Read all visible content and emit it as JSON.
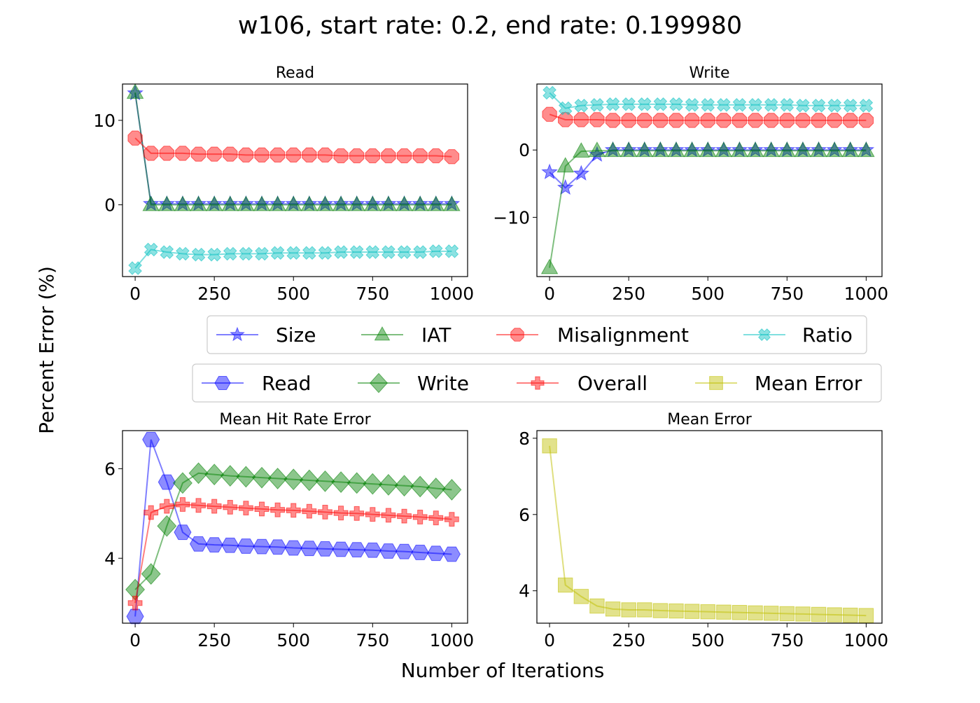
{
  "figure": {
    "title": "w106, start rate: 0.2, end rate: 0.199980",
    "xlabel": "Number of Iterations",
    "ylabel": "Percent Error (%)"
  },
  "legends": [
    {
      "entries": [
        "Size",
        "IAT",
        "Misalignment",
        "Ratio"
      ]
    },
    {
      "entries": [
        "Read",
        "Write",
        "Overall",
        "Mean Error"
      ]
    }
  ],
  "styles": {
    "Size": {
      "color": "#0000ff",
      "marker": "star"
    },
    "IAT": {
      "color": "#008000",
      "marker": "triangle"
    },
    "Misalignment": {
      "color": "#ff0000",
      "marker": "octagon"
    },
    "Ratio": {
      "color": "#00bfbf",
      "marker": "x"
    },
    "Read": {
      "color": "#0000ff",
      "marker": "hexagon"
    },
    "Write": {
      "color": "#008000",
      "marker": "diamond"
    },
    "Overall": {
      "color": "#ff0000",
      "marker": "plus"
    },
    "Mean Error": {
      "color": "#bfbf00",
      "marker": "square"
    }
  },
  "chart_data": [
    {
      "type": "line",
      "title": "Read",
      "x": [
        0,
        50,
        100,
        150,
        200,
        250,
        300,
        350,
        400,
        450,
        500,
        550,
        600,
        650,
        700,
        750,
        800,
        850,
        900,
        950,
        1000
      ],
      "xlim": [
        -40,
        1050
      ],
      "ylim": [
        -8.5,
        14.3
      ],
      "xticks": [
        0,
        250,
        500,
        750,
        1000
      ],
      "yticks": [
        0,
        10
      ],
      "series": [
        {
          "name": "Size",
          "values": [
            13.2,
            0.1,
            0.1,
            0.1,
            0.1,
            0.1,
            0.1,
            0.1,
            0.1,
            0.1,
            0.1,
            0.1,
            0.1,
            0.1,
            0.1,
            0.1,
            0.1,
            0.1,
            0.1,
            0.1,
            0.1
          ]
        },
        {
          "name": "IAT",
          "values": [
            13.3,
            0.0,
            0.0,
            0.0,
            0.0,
            0.0,
            0.0,
            0.0,
            0.0,
            0.0,
            0.0,
            0.0,
            0.0,
            0.0,
            0.0,
            0.0,
            0.0,
            0.0,
            0.0,
            0.0,
            0.0
          ]
        },
        {
          "name": "Misalignment",
          "values": [
            7.9,
            6.1,
            6.1,
            6.1,
            6.0,
            6.0,
            6.0,
            5.9,
            5.9,
            5.9,
            5.9,
            5.9,
            5.9,
            5.8,
            5.8,
            5.8,
            5.8,
            5.8,
            5.8,
            5.8,
            5.7
          ]
        },
        {
          "name": "Ratio",
          "values": [
            -7.5,
            -5.3,
            -5.6,
            -5.8,
            -5.9,
            -5.9,
            -5.8,
            -5.8,
            -5.8,
            -5.7,
            -5.7,
            -5.7,
            -5.7,
            -5.6,
            -5.6,
            -5.6,
            -5.6,
            -5.6,
            -5.6,
            -5.5,
            -5.5
          ]
        }
      ]
    },
    {
      "type": "line",
      "title": "Write",
      "x": [
        0,
        50,
        100,
        150,
        200,
        250,
        300,
        350,
        400,
        450,
        500,
        550,
        600,
        650,
        700,
        750,
        800,
        850,
        900,
        950,
        1000
      ],
      "xlim": [
        -40,
        1050
      ],
      "ylim": [
        -18.8,
        9.8
      ],
      "xticks": [
        0,
        250,
        500,
        750,
        1000
      ],
      "yticks": [
        -10,
        0
      ],
      "series": [
        {
          "name": "Size",
          "values": [
            -3.3,
            -5.6,
            -3.5,
            -0.7,
            0.0,
            0.0,
            0.0,
            0.0,
            0.0,
            0.0,
            0.0,
            0.0,
            0.0,
            0.0,
            0.0,
            0.0,
            0.0,
            0.0,
            0.0,
            0.0,
            0.0
          ]
        },
        {
          "name": "IAT",
          "values": [
            -17.5,
            -2.4,
            -0.2,
            -0.1,
            -0.1,
            -0.1,
            -0.1,
            -0.1,
            -0.1,
            -0.1,
            -0.1,
            -0.1,
            -0.1,
            -0.1,
            -0.1,
            -0.1,
            -0.1,
            -0.1,
            -0.1,
            -0.1,
            -0.1
          ]
        },
        {
          "name": "Misalignment",
          "values": [
            5.3,
            4.5,
            4.5,
            4.5,
            4.4,
            4.4,
            4.4,
            4.4,
            4.4,
            4.4,
            4.4,
            4.4,
            4.4,
            4.4,
            4.4,
            4.4,
            4.4,
            4.4,
            4.4,
            4.4,
            4.4
          ]
        },
        {
          "name": "Ratio",
          "values": [
            8.5,
            6.2,
            6.6,
            6.7,
            6.8,
            6.8,
            6.8,
            6.8,
            6.8,
            6.7,
            6.7,
            6.7,
            6.7,
            6.7,
            6.7,
            6.7,
            6.6,
            6.6,
            6.6,
            6.6,
            6.6
          ]
        }
      ]
    },
    {
      "type": "line",
      "title": "Mean Hit Rate Error",
      "x": [
        0,
        50,
        100,
        150,
        200,
        250,
        300,
        350,
        400,
        450,
        500,
        550,
        600,
        650,
        700,
        750,
        800,
        850,
        900,
        950,
        1000
      ],
      "xlim": [
        -40,
        1050
      ],
      "ylim": [
        2.55,
        6.85
      ],
      "xticks": [
        0,
        250,
        500,
        750,
        1000
      ],
      "yticks": [
        4,
        6
      ],
      "series": [
        {
          "name": "Read",
          "values": [
            2.7,
            6.65,
            5.7,
            4.58,
            4.32,
            4.3,
            4.29,
            4.27,
            4.26,
            4.25,
            4.23,
            4.22,
            4.21,
            4.2,
            4.19,
            4.18,
            4.16,
            4.15,
            4.13,
            4.11,
            4.09
          ]
        },
        {
          "name": "Write",
          "values": [
            3.3,
            3.65,
            4.72,
            5.68,
            5.9,
            5.87,
            5.84,
            5.82,
            5.8,
            5.78,
            5.76,
            5.74,
            5.72,
            5.7,
            5.68,
            5.66,
            5.64,
            5.62,
            5.6,
            5.56,
            5.53
          ]
        },
        {
          "name": "Overall",
          "values": [
            3.0,
            5.02,
            5.16,
            5.2,
            5.18,
            5.16,
            5.14,
            5.12,
            5.1,
            5.08,
            5.07,
            5.05,
            5.03,
            5.01,
            5.0,
            4.98,
            4.96,
            4.94,
            4.92,
            4.9,
            4.87
          ]
        }
      ]
    },
    {
      "type": "line",
      "title": "Mean Error",
      "x": [
        0,
        50,
        100,
        150,
        200,
        250,
        300,
        350,
        400,
        450,
        500,
        550,
        600,
        650,
        700,
        750,
        800,
        850,
        900,
        950,
        1000
      ],
      "xlim": [
        -40,
        1050
      ],
      "ylim": [
        3.15,
        8.2
      ],
      "xticks": [
        0,
        250,
        500,
        750,
        1000
      ],
      "yticks": [
        4,
        6,
        8
      ],
      "series": [
        {
          "name": "Mean Error",
          "values": [
            7.8,
            4.15,
            3.85,
            3.6,
            3.52,
            3.5,
            3.5,
            3.48,
            3.47,
            3.46,
            3.45,
            3.44,
            3.43,
            3.42,
            3.41,
            3.4,
            3.39,
            3.38,
            3.37,
            3.36,
            3.35
          ]
        }
      ]
    }
  ]
}
